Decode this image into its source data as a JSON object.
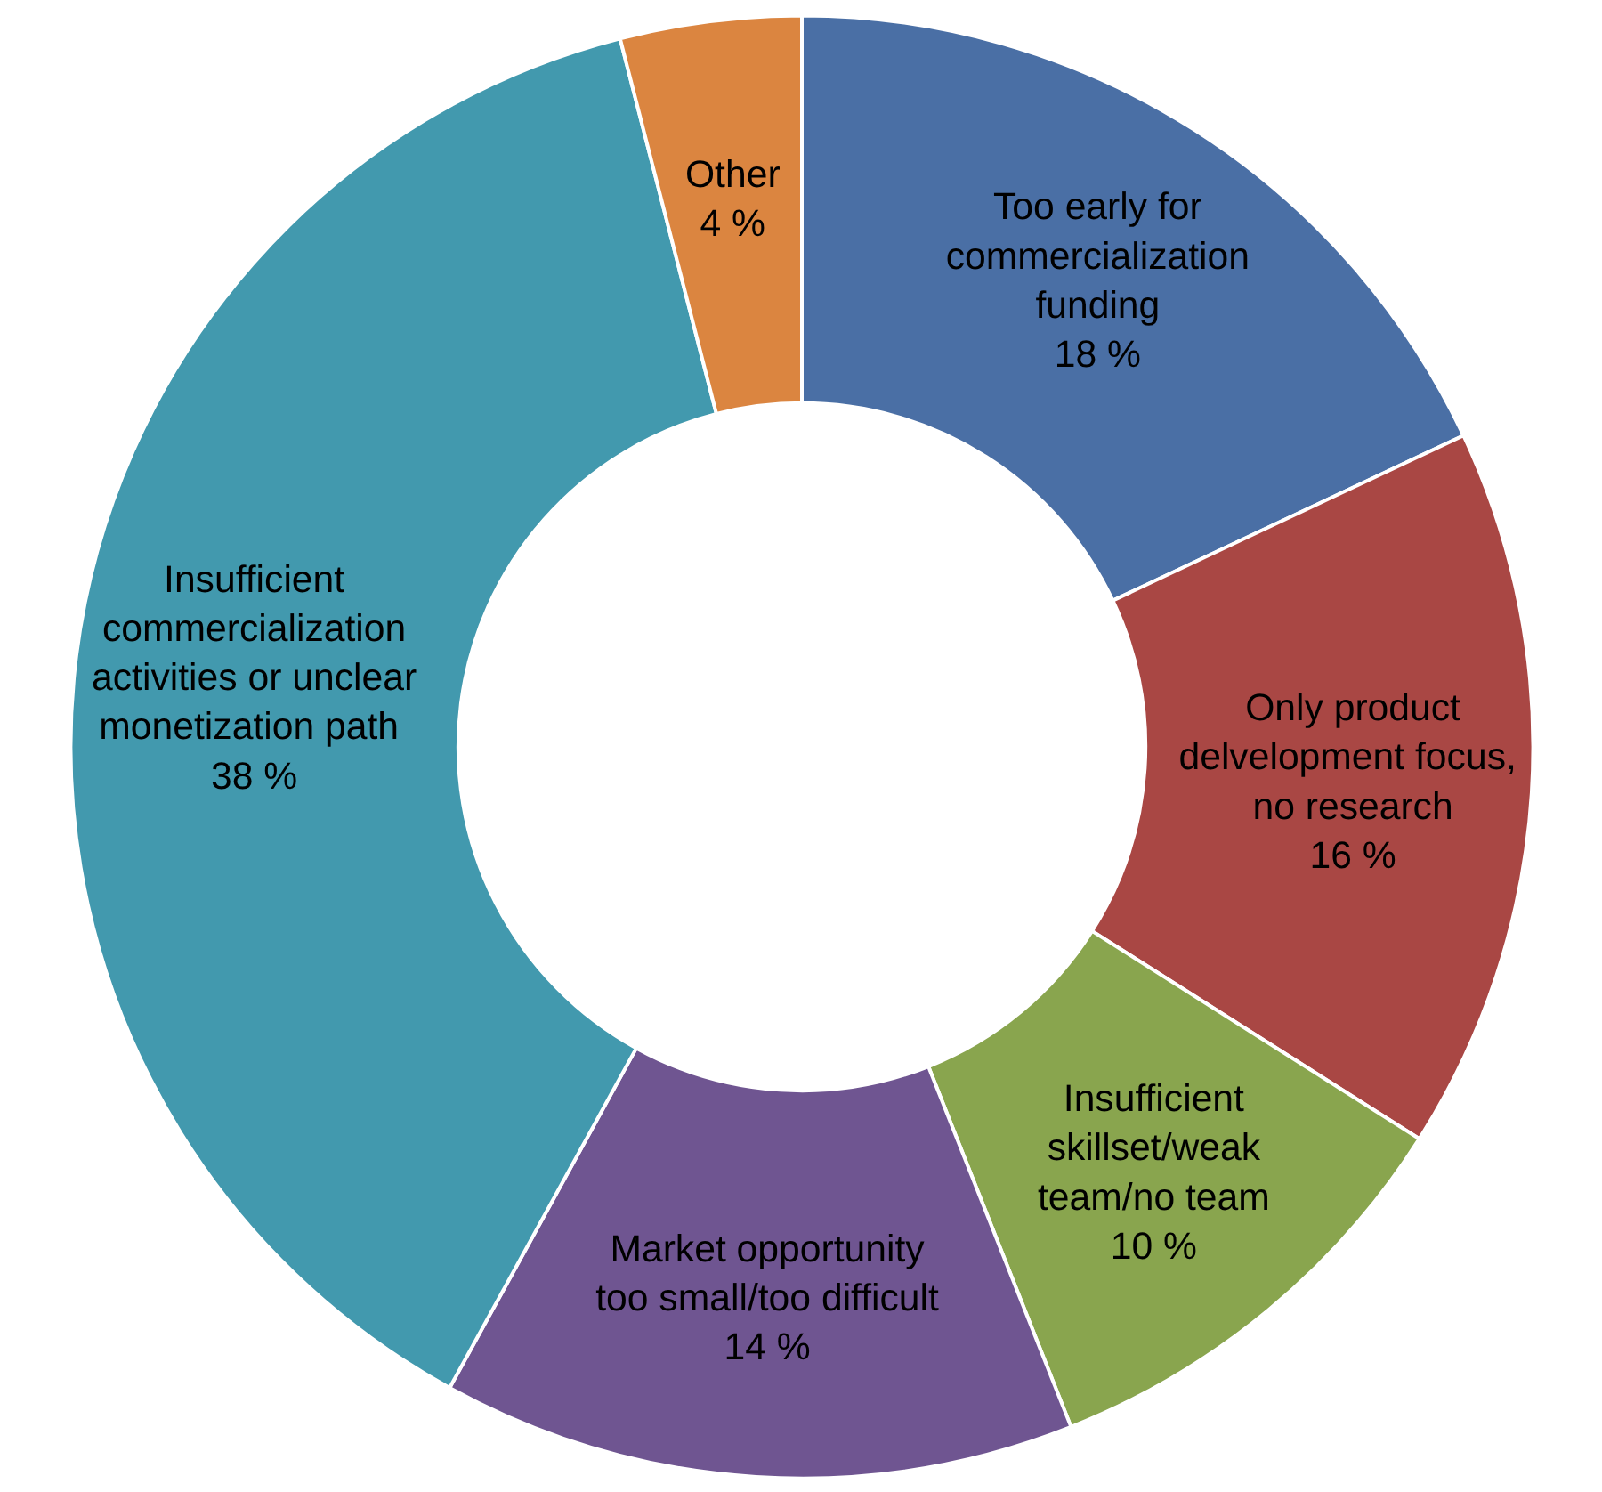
{
  "chart_data": {
    "type": "donut",
    "categories": [
      "Too early for\ncommercialization\nfunding",
      "Only product\ndelvelopment  focus,\nno research",
      "Insufficient\nskillset/weak\nteam/no team",
      "Market opportunity\ntoo small/too difficult",
      "Insufficient\ncommercialization\nactivities or unclear\nmonetization  path",
      "Other"
    ],
    "values": [
      18,
      16,
      10,
      14,
      38,
      4
    ],
    "value_labels": [
      "18 %",
      "16 %",
      "10 %",
      "14 %",
      "38 %",
      "4 %"
    ],
    "colors": [
      "#4a6fa5",
      "#a94744",
      "#89a54e",
      "#6f5591",
      "#4299ae",
      "#db8540"
    ]
  }
}
